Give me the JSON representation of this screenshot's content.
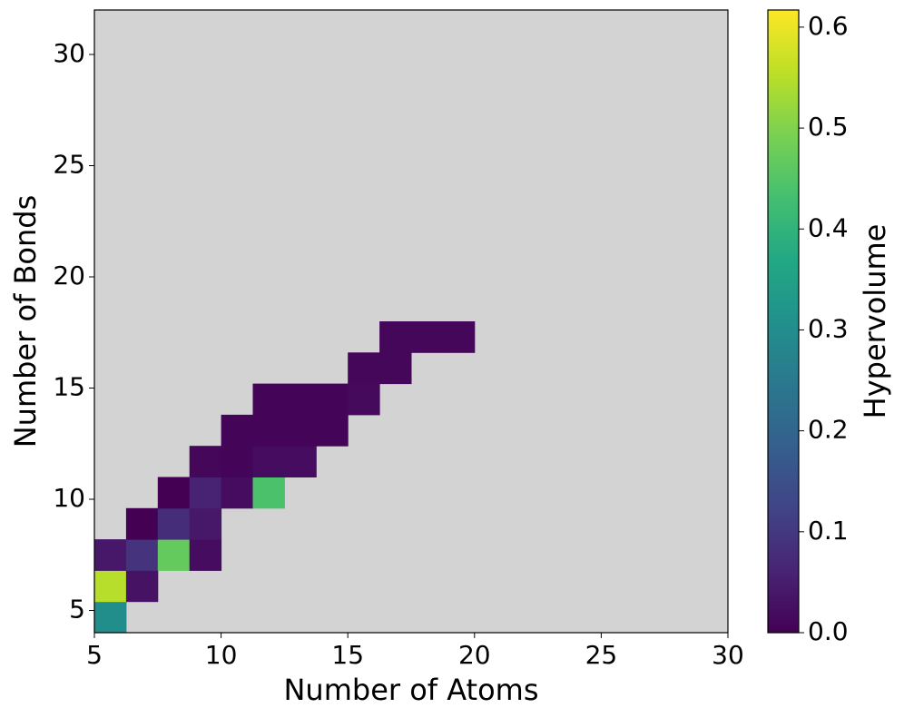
{
  "chart_data": {
    "type": "heatmap",
    "xlabel": "Number of Atoms",
    "ylabel": "Number of Bonds",
    "colorbar_label": "Hypervolume",
    "colormap": "viridis",
    "background": "#d3d3d3",
    "xbins": [
      5,
      6.25,
      7.5,
      8.75,
      10,
      11.25,
      12.5,
      13.75,
      15,
      16.25,
      17.5,
      18.75,
      20,
      21.25,
      22.5,
      23.75,
      25,
      26.25,
      27.5,
      28.75,
      30
    ],
    "ybins": [
      4,
      5.4,
      6.8,
      8.2,
      9.6,
      11,
      12.4,
      13.8,
      15.2,
      16.6,
      18,
      19.4,
      20.8,
      22.2,
      23.6,
      25,
      26.4,
      27.8,
      29.2,
      30.6,
      32
    ],
    "z": [
      [
        0.3,
        null,
        null,
        null,
        null,
        null,
        null,
        null,
        null,
        null,
        null,
        null,
        null,
        null,
        null,
        null,
        null,
        null,
        null,
        null
      ],
      [
        0.55,
        0.03,
        null,
        null,
        null,
        null,
        null,
        null,
        null,
        null,
        null,
        null,
        null,
        null,
        null,
        null,
        null,
        null,
        null,
        null
      ],
      [
        0.04,
        0.09,
        0.47,
        0.02,
        null,
        null,
        null,
        null,
        null,
        null,
        null,
        null,
        null,
        null,
        null,
        null,
        null,
        null,
        null,
        null
      ],
      [
        null,
        0.0,
        0.08,
        0.04,
        null,
        null,
        null,
        null,
        null,
        null,
        null,
        null,
        null,
        null,
        null,
        null,
        null,
        null,
        null,
        null
      ],
      [
        null,
        null,
        0.0,
        0.06,
        0.02,
        0.44,
        null,
        null,
        null,
        null,
        null,
        null,
        null,
        null,
        null,
        null,
        null,
        null,
        null,
        null
      ],
      [
        null,
        null,
        null,
        0.01,
        0.005,
        0.02,
        0.02,
        null,
        null,
        null,
        null,
        null,
        null,
        null,
        null,
        null,
        null,
        null,
        null,
        null
      ],
      [
        null,
        null,
        null,
        null,
        0.005,
        0.005,
        0.005,
        0.005,
        null,
        null,
        null,
        null,
        null,
        null,
        null,
        null,
        null,
        null,
        null,
        null
      ],
      [
        null,
        null,
        null,
        null,
        null,
        0.005,
        0.005,
        0.005,
        0.015,
        null,
        null,
        null,
        null,
        null,
        null,
        null,
        null,
        null,
        null,
        null
      ],
      [
        null,
        null,
        null,
        null,
        null,
        null,
        null,
        null,
        0.01,
        0.01,
        null,
        null,
        null,
        null,
        null,
        null,
        null,
        null,
        null,
        null
      ],
      [
        null,
        null,
        null,
        null,
        null,
        null,
        null,
        null,
        null,
        0.01,
        0.01,
        0.01,
        null,
        null,
        null,
        null,
        null,
        null,
        null,
        null
      ],
      [
        null,
        null,
        null,
        null,
        null,
        null,
        null,
        null,
        null,
        null,
        null,
        null,
        null,
        null,
        null,
        null,
        null,
        null,
        null,
        null
      ],
      [
        null,
        null,
        null,
        null,
        null,
        null,
        null,
        null,
        null,
        null,
        null,
        null,
        null,
        null,
        null,
        null,
        null,
        null,
        null,
        null
      ],
      [
        null,
        null,
        null,
        null,
        null,
        null,
        null,
        null,
        null,
        null,
        null,
        null,
        null,
        null,
        null,
        null,
        null,
        null,
        null,
        null
      ],
      [
        null,
        null,
        null,
        null,
        null,
        null,
        null,
        null,
        null,
        null,
        null,
        null,
        null,
        null,
        null,
        null,
        null,
        null,
        null,
        null
      ],
      [
        null,
        null,
        null,
        null,
        null,
        null,
        null,
        null,
        null,
        null,
        null,
        null,
        null,
        null,
        null,
        null,
        null,
        null,
        null,
        null
      ],
      [
        null,
        null,
        null,
        null,
        null,
        null,
        null,
        null,
        null,
        null,
        null,
        null,
        null,
        null,
        null,
        null,
        null,
        null,
        null,
        null
      ],
      [
        null,
        null,
        null,
        null,
        null,
        null,
        null,
        null,
        null,
        null,
        null,
        null,
        null,
        null,
        null,
        null,
        null,
        null,
        null,
        null
      ],
      [
        null,
        null,
        null,
        null,
        null,
        null,
        null,
        null,
        null,
        null,
        null,
        null,
        null,
        null,
        null,
        null,
        null,
        null,
        null,
        null
      ],
      [
        null,
        null,
        null,
        null,
        null,
        null,
        null,
        null,
        null,
        null,
        null,
        null,
        null,
        null,
        null,
        null,
        null,
        null,
        null,
        null
      ],
      [
        null,
        null,
        null,
        null,
        null,
        null,
        null,
        null,
        null,
        null,
        null,
        null,
        null,
        null,
        null,
        null,
        null,
        null,
        null,
        null
      ]
    ],
    "xlim": [
      5,
      30
    ],
    "xticks": [
      5,
      10,
      15,
      20,
      25,
      30
    ],
    "ylim": [
      4,
      32
    ],
    "yticks": [
      5,
      10,
      15,
      20,
      25,
      30
    ],
    "clim": [
      0,
      0.617
    ],
    "cticks": [
      {
        "value": 0,
        "label": "0.0"
      },
      0.1,
      0.2,
      0.3,
      0.4,
      0.5,
      0.6
    ]
  }
}
